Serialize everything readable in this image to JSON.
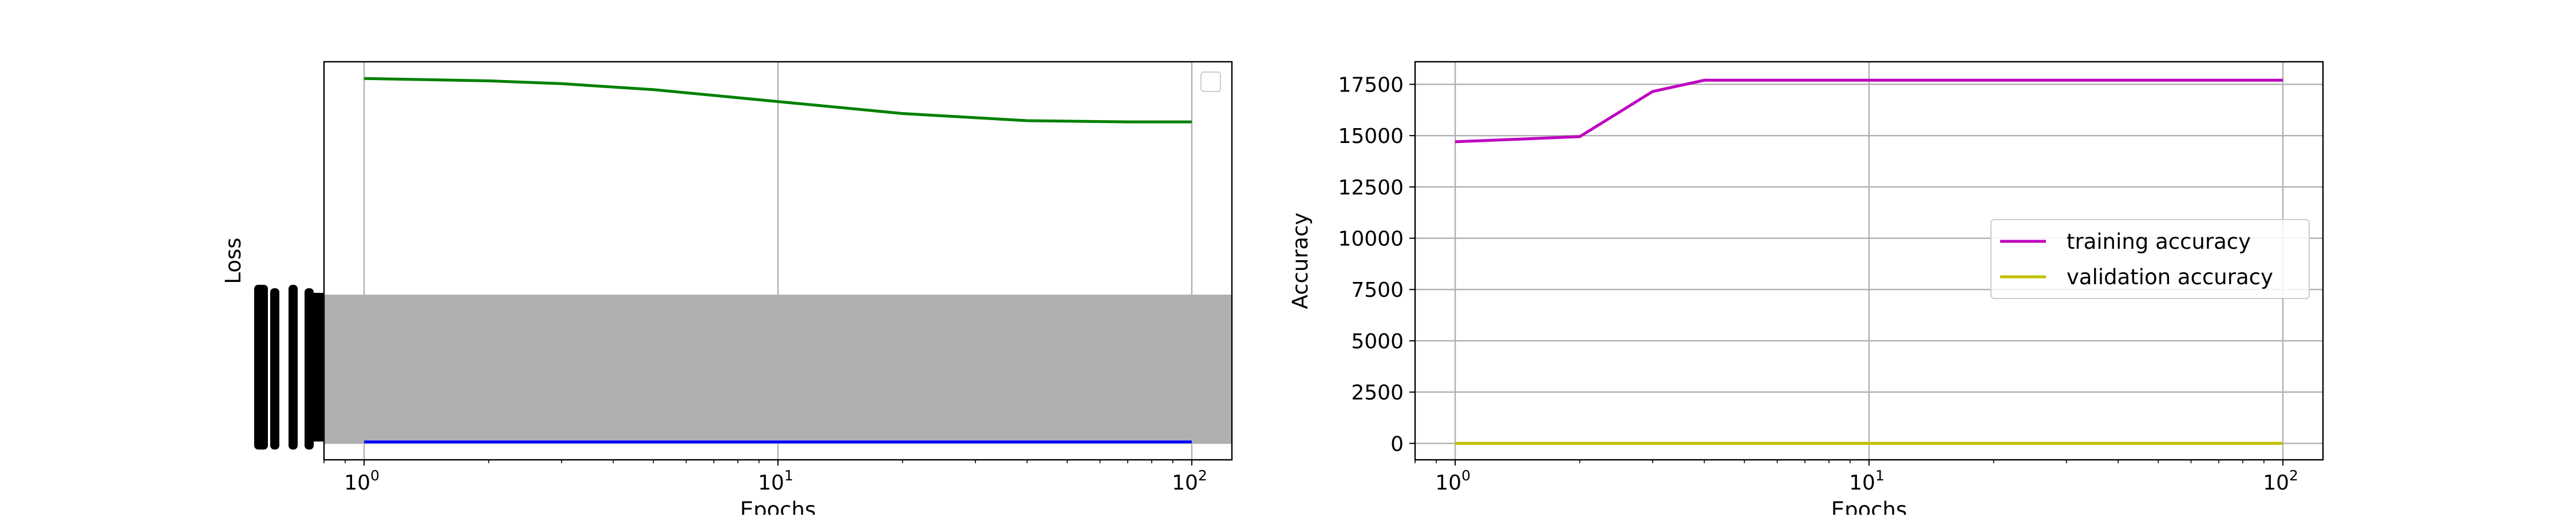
{
  "chart_data": [
    {
      "type": "line",
      "title": "",
      "xlabel": "Epochs",
      "ylabel": "Loss",
      "x_scale": "log",
      "xlim": [
        0.8,
        125
      ],
      "x_ticks": [
        {
          "value": 1,
          "base": "10",
          "exp": "0"
        },
        {
          "value": 10,
          "base": "10",
          "exp": "1"
        },
        {
          "value": 100,
          "base": "10",
          "exp": "2"
        }
      ],
      "grid": "vertical",
      "legend": {
        "placement": "top-right",
        "entries": []
      },
      "series": [
        {
          "color": "#008000",
          "x": [
            1,
            2,
            3,
            5,
            10,
            20,
            40,
            70,
            100
          ],
          "y_fraction": [
            0.958,
            0.952,
            0.945,
            0.93,
            0.9,
            0.87,
            0.852,
            0.849,
            0.849
          ]
        },
        {
          "color": "#0000ff",
          "x": [
            1,
            100
          ],
          "y_fraction": [
            0.045,
            0.045
          ]
        }
      ],
      "shaded_band": {
        "color": "#b0b0b0",
        "y_fraction": [
          0.04,
          0.415
        ]
      }
    },
    {
      "type": "line",
      "title": "",
      "xlabel": "Epochs",
      "ylabel": "Accuracy",
      "x_scale": "log",
      "xlim": [
        0.8,
        125
      ],
      "ylim": [
        -800,
        18600
      ],
      "x_ticks": [
        {
          "value": 1,
          "base": "10",
          "exp": "0"
        },
        {
          "value": 10,
          "base": "10",
          "exp": "1"
        },
        {
          "value": 100,
          "base": "10",
          "exp": "2"
        }
      ],
      "y_ticks": [
        {
          "value": 0,
          "label": "0"
        },
        {
          "value": 2500,
          "label": "2500"
        },
        {
          "value": 5000,
          "label": "5000"
        },
        {
          "value": 7500,
          "label": "7500"
        },
        {
          "value": 10000,
          "label": "10000"
        },
        {
          "value": 12500,
          "label": "12500"
        },
        {
          "value": 15000,
          "label": "15000"
        },
        {
          "value": 17500,
          "label": "17500"
        }
      ],
      "grid": "both",
      "legend": {
        "placement": "center-right",
        "entries": [
          "training accuracy",
          "validation accuracy"
        ]
      },
      "series": [
        {
          "name": "training accuracy",
          "color": "#bf00bf",
          "x": [
            1,
            2,
            3,
            4,
            5,
            10,
            20,
            50,
            100
          ],
          "y": [
            14700,
            14950,
            17150,
            17700,
            17700,
            17700,
            17700,
            17700,
            17700
          ]
        },
        {
          "name": "validation accuracy",
          "color": "#bfbf00",
          "x": [
            1,
            100
          ],
          "y": [
            0,
            0
          ]
        }
      ]
    }
  ]
}
